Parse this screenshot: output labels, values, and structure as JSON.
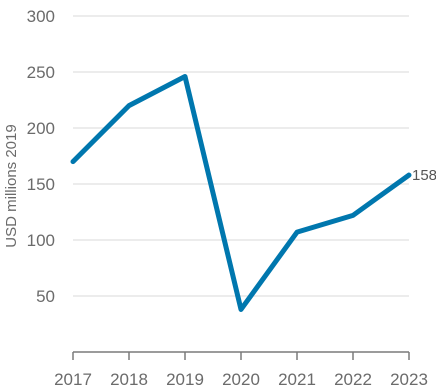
{
  "chart_data": {
    "type": "line",
    "title": "",
    "xlabel": "",
    "ylabel": "USD millions 2019",
    "x": [
      "2017",
      "2018",
      "2019",
      "2020",
      "2021",
      "2022",
      "2023"
    ],
    "series": [
      {
        "values": [
          170,
          220,
          246,
          38,
          107,
          122,
          158
        ]
      }
    ],
    "ylim": [
      0,
      300
    ],
    "yticks": [
      50,
      100,
      150,
      200,
      250,
      300
    ],
    "grid": "horizontal",
    "legend": "none",
    "end_label": "158",
    "colors": {
      "line": "#0077AE",
      "grid": "#e6e6e6",
      "axis": "#7a7a7a",
      "text": "#6b6b6b"
    }
  }
}
